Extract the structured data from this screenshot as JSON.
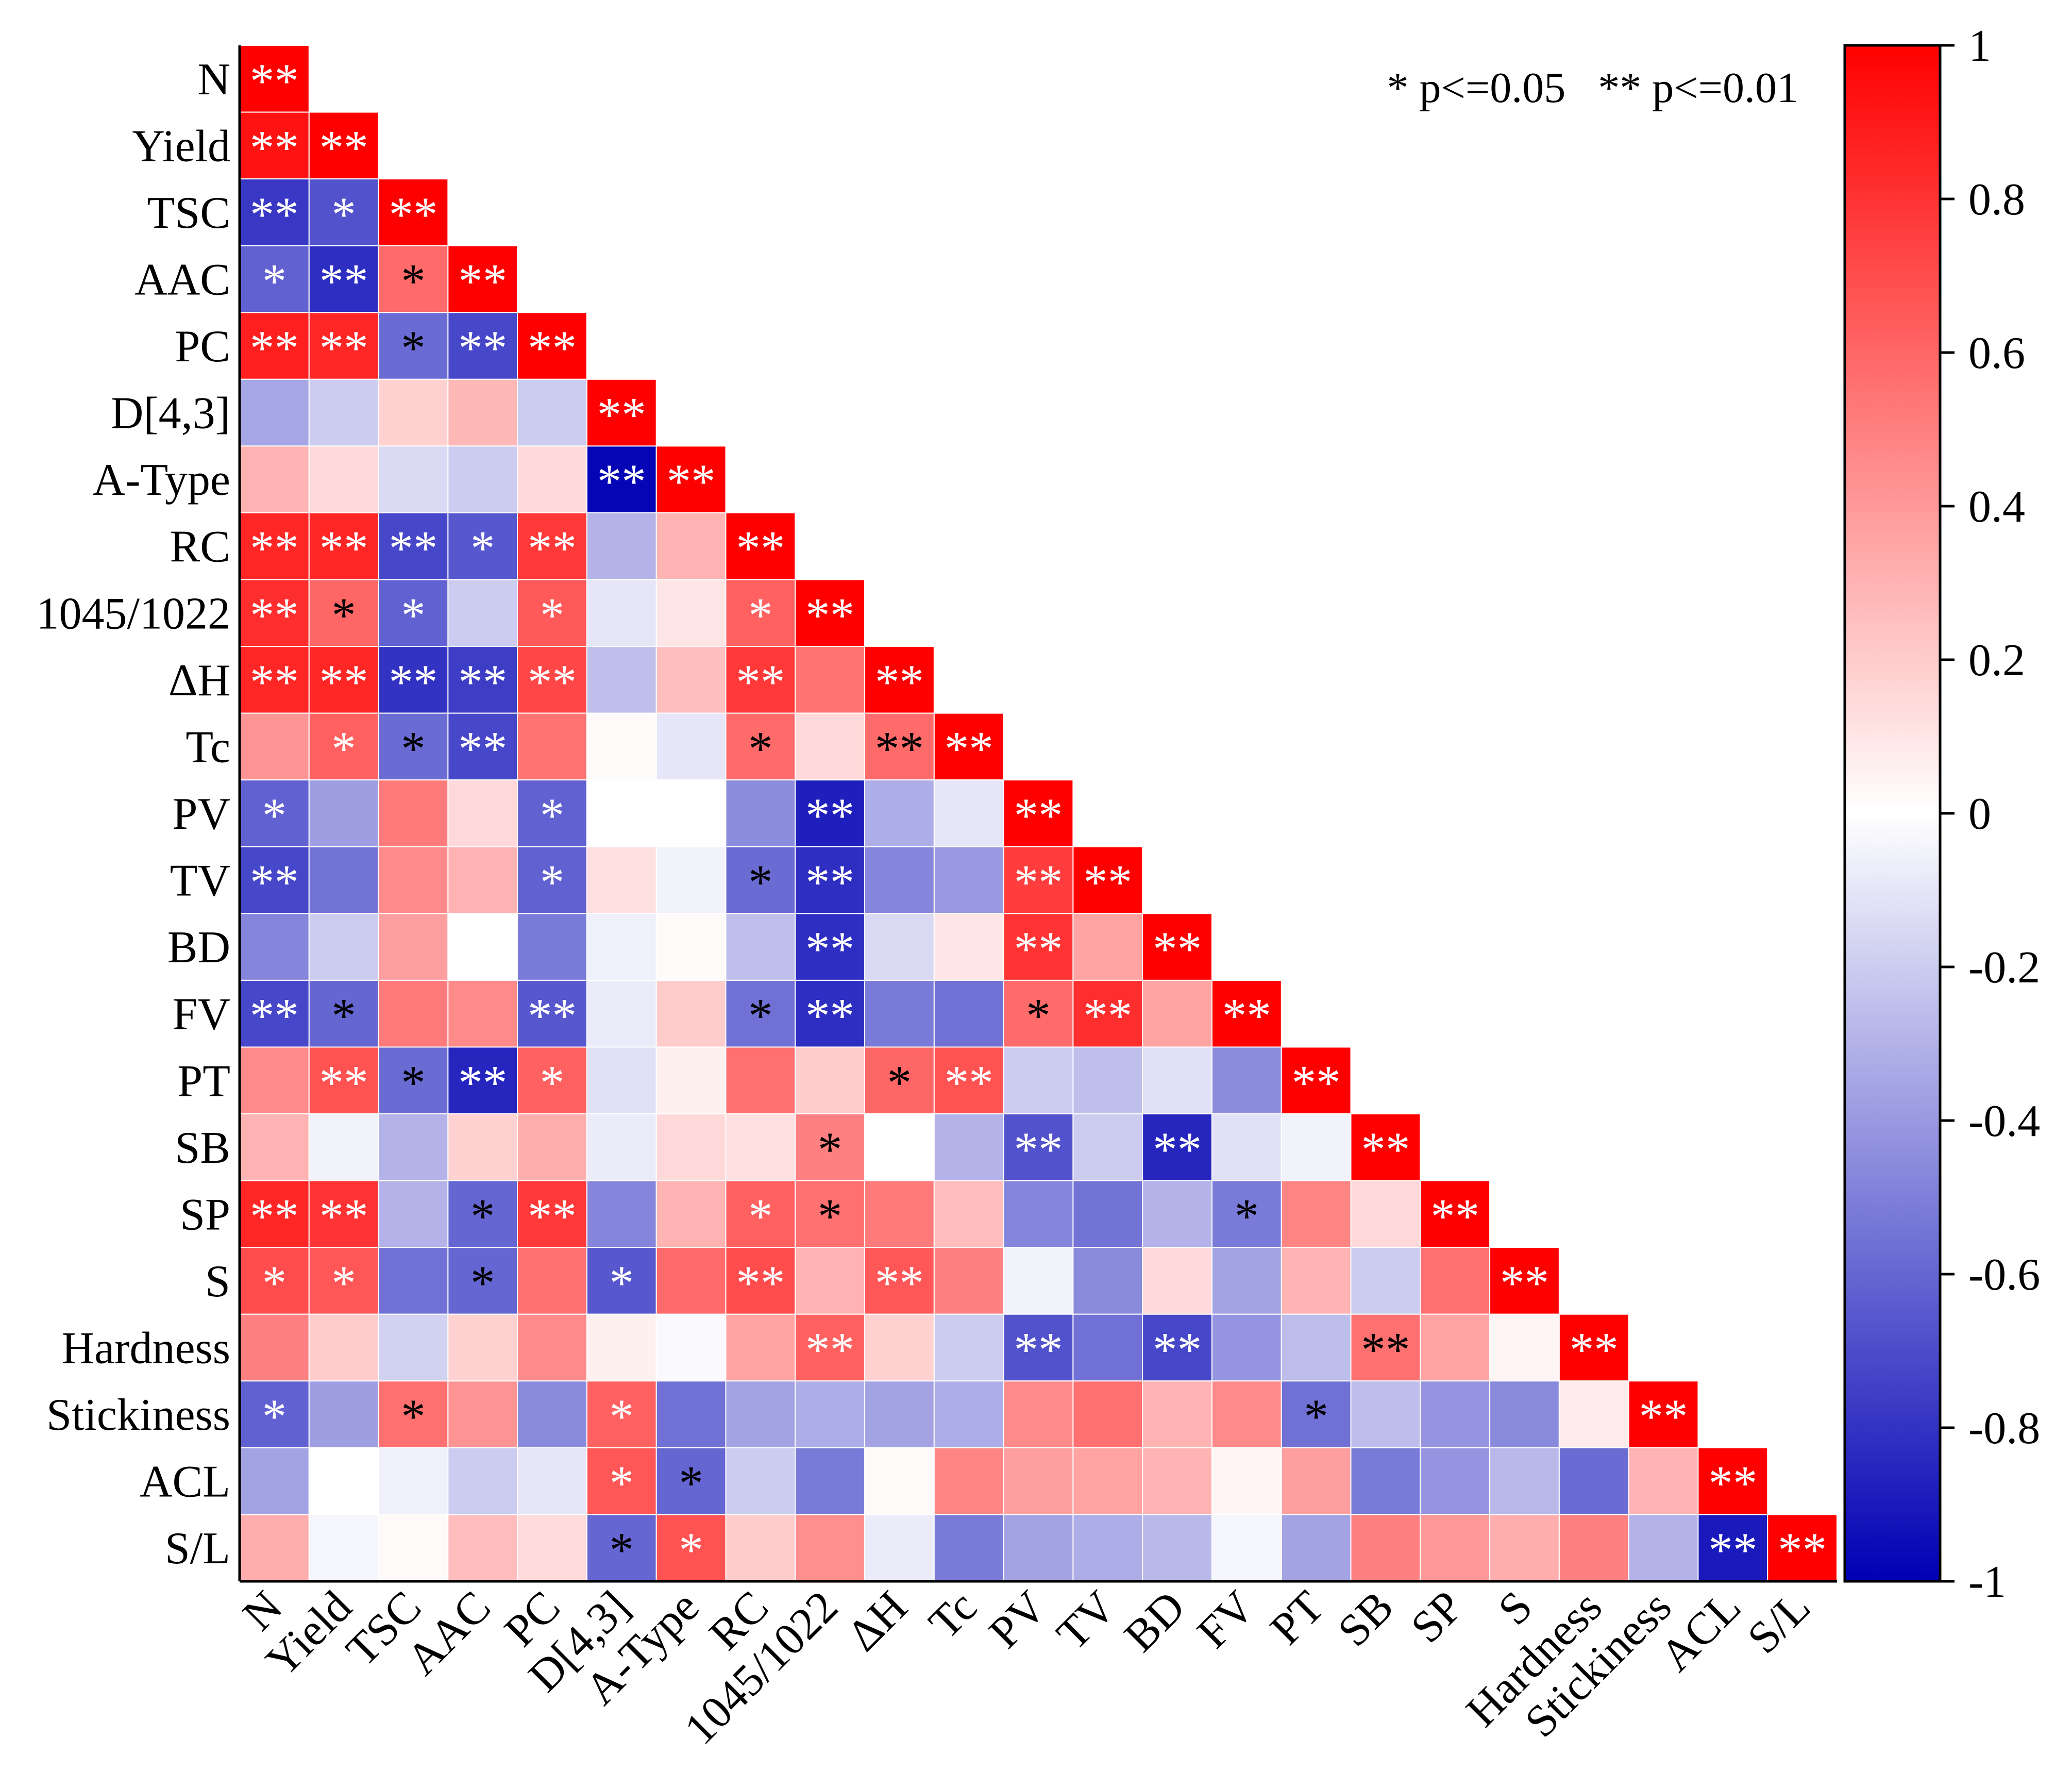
{
  "chart_data": {
    "type": "heatmap",
    "subtype": "lower-triangular correlation matrix",
    "variables": [
      "N",
      "Yield",
      "TSC",
      "AAC",
      "PC",
      "D[4,3]",
      "A-Type",
      "RC",
      "1045/1022",
      "ΔH",
      "Tc",
      "PV",
      "TV",
      "BD",
      "FV",
      "PT",
      "SB",
      "SP",
      "S",
      "Hardness",
      "Stickiness",
      "ACL",
      "S/L"
    ],
    "legend_text": "* p<=0.05   ** p<=0.01",
    "colorbar": {
      "min": -1,
      "max": 1,
      "ticks": [
        1,
        0.8,
        0.6,
        0.4,
        0.2,
        0,
        -0.2,
        -0.4,
        -0.6,
        -0.8,
        -1
      ],
      "tick_labels": [
        "1",
        "0.8",
        "0.6",
        "0.4",
        "0.2",
        "0",
        "-0.2",
        "-0.4",
        "-0.6",
        "-0.8",
        "-1"
      ],
      "colors": {
        "negative": "#0000b4",
        "zero": "#ffffff",
        "positive": "#ff0000"
      }
    },
    "values": [
      [
        1.0
      ],
      [
        0.93,
        1.0
      ],
      [
        -0.78,
        -0.68,
        1.0
      ],
      [
        -0.62,
        -0.82,
        0.58,
        1.0
      ],
      [
        0.88,
        0.85,
        -0.58,
        -0.72,
        1.0
      ],
      [
        -0.35,
        -0.2,
        0.18,
        0.28,
        -0.2,
        1.0
      ],
      [
        0.3,
        0.15,
        -0.15,
        -0.2,
        0.15,
        -0.98,
        1.0
      ],
      [
        0.85,
        0.85,
        -0.72,
        -0.66,
        0.78,
        -0.3,
        0.3,
        1.0
      ],
      [
        0.82,
        0.6,
        -0.62,
        -0.2,
        0.65,
        -0.1,
        0.1,
        0.62,
        1.0
      ],
      [
        0.85,
        0.85,
        -0.8,
        -0.76,
        0.72,
        -0.25,
        0.25,
        0.78,
        0.55,
        1.0
      ],
      [
        0.42,
        0.62,
        -0.58,
        -0.72,
        0.55,
        0.02,
        -0.1,
        0.58,
        0.15,
        0.58,
        1.0
      ],
      [
        -0.62,
        -0.38,
        0.52,
        0.15,
        -0.62,
        0.0,
        0.0,
        -0.45,
        -0.88,
        -0.32,
        -0.1,
        1.0
      ],
      [
        -0.72,
        -0.55,
        0.46,
        0.3,
        -0.62,
        0.12,
        -0.05,
        -0.58,
        -0.82,
        -0.48,
        -0.4,
        0.76,
        1.0
      ],
      [
        -0.48,
        -0.2,
        0.38,
        0.0,
        -0.52,
        -0.06,
        0.02,
        -0.25,
        -0.82,
        -0.15,
        0.1,
        0.8,
        0.36,
        1.0
      ],
      [
        -0.72,
        -0.6,
        0.52,
        0.46,
        -0.66,
        -0.08,
        0.2,
        -0.56,
        -0.82,
        -0.52,
        -0.56,
        0.58,
        0.82,
        0.36,
        1.0
      ],
      [
        0.46,
        0.68,
        -0.58,
        -0.85,
        0.62,
        -0.12,
        0.06,
        0.56,
        0.2,
        0.6,
        0.68,
        -0.2,
        -0.25,
        -0.12,
        -0.45,
        1.0
      ],
      [
        0.3,
        -0.05,
        -0.3,
        0.18,
        0.32,
        -0.08,
        0.15,
        0.12,
        0.5,
        0.0,
        -0.3,
        -0.68,
        -0.2,
        -0.85,
        -0.12,
        -0.05,
        1.0
      ],
      [
        0.85,
        0.8,
        -0.3,
        -0.6,
        0.78,
        -0.48,
        0.3,
        0.62,
        0.56,
        0.52,
        0.26,
        -0.48,
        -0.55,
        -0.3,
        -0.52,
        0.48,
        0.15,
        1.0
      ],
      [
        0.7,
        0.66,
        -0.56,
        -0.6,
        0.56,
        -0.66,
        0.58,
        0.7,
        0.3,
        0.66,
        0.5,
        -0.05,
        -0.46,
        0.15,
        -0.36,
        0.3,
        -0.2,
        0.56,
        1.0
      ],
      [
        0.5,
        0.2,
        -0.18,
        0.18,
        0.46,
        0.06,
        -0.02,
        0.36,
        0.62,
        0.18,
        -0.2,
        -0.68,
        -0.56,
        -0.72,
        -0.42,
        -0.26,
        0.56,
        0.36,
        0.04,
        1.0
      ],
      [
        -0.62,
        -0.38,
        0.56,
        0.42,
        -0.46,
        0.62,
        -0.56,
        -0.36,
        -0.32,
        -0.36,
        -0.32,
        0.46,
        0.56,
        0.3,
        0.46,
        -0.56,
        -0.26,
        -0.42,
        -0.46,
        0.08,
        1.0
      ],
      [
        -0.36,
        0.0,
        -0.06,
        -0.2,
        -0.1,
        0.66,
        -0.6,
        -0.2,
        -0.52,
        0.02,
        0.48,
        0.38,
        0.36,
        0.3,
        0.04,
        0.38,
        -0.52,
        -0.42,
        -0.28,
        -0.58,
        0.3,
        1.0
      ],
      [
        0.32,
        -0.04,
        0.02,
        0.26,
        0.14,
        -0.6,
        0.68,
        0.2,
        0.44,
        -0.08,
        -0.52,
        -0.36,
        -0.32,
        -0.28,
        -0.04,
        -0.36,
        0.5,
        0.4,
        0.32,
        0.5,
        -0.3,
        -0.9,
        1.0
      ]
    ],
    "significance": [
      [
        "**"
      ],
      [
        "**",
        "**"
      ],
      [
        "**",
        "*",
        "**"
      ],
      [
        "*",
        "**",
        "*",
        "**"
      ],
      [
        "**",
        "**",
        "*",
        "**",
        "**"
      ],
      [
        "",
        "",
        "",
        "",
        "",
        "**"
      ],
      [
        "",
        "",
        "",
        "",
        "",
        "**",
        "**"
      ],
      [
        "**",
        "**",
        "**",
        "*",
        "**",
        "",
        "",
        "**"
      ],
      [
        "**",
        "*",
        "*",
        "",
        "*",
        "",
        "",
        "*",
        "**"
      ],
      [
        "**",
        "**",
        "**",
        "**",
        "**",
        "",
        "",
        "**",
        "",
        "**"
      ],
      [
        "",
        "*",
        "*",
        "**",
        "",
        "",
        "",
        "*",
        "",
        "**",
        "**"
      ],
      [
        "*",
        "",
        "",
        "",
        "*",
        "",
        "",
        "",
        "**",
        "",
        "",
        "**"
      ],
      [
        "**",
        "",
        "",
        "",
        "*",
        "",
        "",
        "*",
        "**",
        "",
        "",
        "**",
        "**"
      ],
      [
        "",
        "",
        "",
        "",
        "",
        "",
        "",
        "",
        "**",
        "",
        "",
        "**",
        "",
        "**"
      ],
      [
        "**",
        "*",
        "",
        "",
        "**",
        "",
        "",
        "*",
        "**",
        "",
        "",
        "*",
        "**",
        "",
        "**"
      ],
      [
        "",
        "**",
        "*",
        "**",
        "*",
        "",
        "",
        "",
        "",
        "*",
        "**",
        "",
        "",
        "",
        "",
        "**"
      ],
      [
        "",
        "",
        "",
        "",
        "",
        "",
        "",
        "",
        "*",
        "",
        "",
        "**",
        "",
        "**",
        "",
        "",
        "**"
      ],
      [
        "**",
        "**",
        "",
        "*",
        "**",
        "",
        "",
        "*",
        "*",
        "",
        "",
        "",
        "",
        "",
        "*",
        "",
        "",
        "**"
      ],
      [
        "*",
        "*",
        "",
        "*",
        "",
        "*",
        "",
        "**",
        "",
        "**",
        "",
        "",
        "",
        "",
        "",
        "",
        "",
        "",
        "**"
      ],
      [
        "",
        "",
        "",
        "",
        "",
        "",
        "",
        "",
        "**",
        "",
        "",
        "**",
        "",
        "**",
        "",
        "",
        "**",
        "",
        "",
        "**"
      ],
      [
        "*",
        "",
        "*",
        "",
        "",
        "*",
        "",
        "",
        "",
        "",
        "",
        "",
        "",
        "",
        "",
        "*",
        "",
        "",
        "",
        "",
        "**"
      ],
      [
        "",
        "",
        "",
        "",
        "",
        "*",
        "*",
        "",
        "",
        "",
        "",
        "",
        "",
        "",
        "",
        "",
        "",
        "",
        "",
        "",
        "",
        "**"
      ],
      [
        "",
        "",
        "",
        "",
        "",
        "*",
        "*",
        "",
        "",
        "",
        "",
        "",
        "",
        "",
        "",
        "",
        "",
        "",
        "",
        "",
        "",
        "**",
        "**"
      ]
    ]
  }
}
